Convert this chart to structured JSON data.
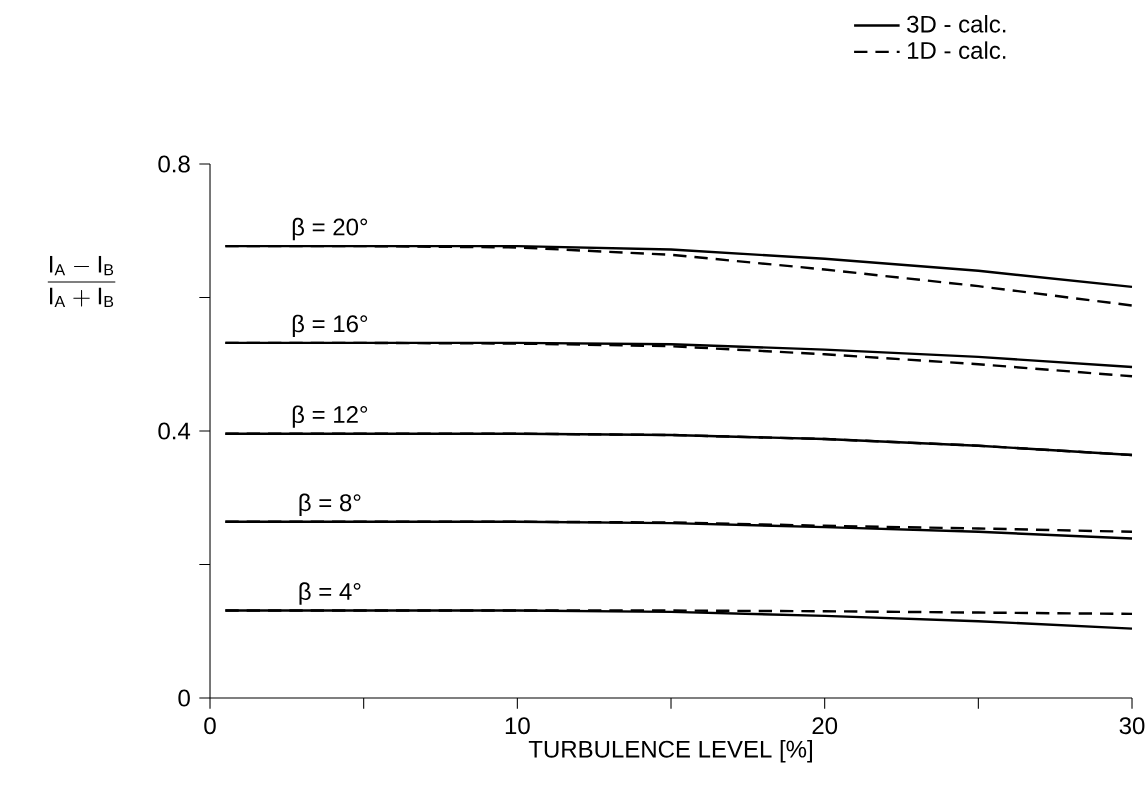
{
  "chart_data": {
    "type": "line",
    "xlabel": "TURBULENCE LEVEL [%]",
    "ylabel": "\\frac{\\mathrm{I_A - I_B}}{\\mathrm{I_A + I_B}}",
    "x": [
      0.5,
      5,
      10,
      15,
      20,
      25,
      30
    ],
    "xlim": [
      0,
      30
    ],
    "ylim": [
      0,
      0.8
    ],
    "xticks": [
      0,
      {
        "value": 5,
        "label": null
      },
      10,
      {
        "value": 15,
        "label": null
      },
      20,
      {
        "value": 25,
        "label": null
      },
      30
    ],
    "yticks": [
      0,
      {
        "value": 0.2,
        "label": null
      },
      0.4,
      {
        "value": 0.6,
        "label": null
      },
      0.8
    ],
    "marker": "none",
    "legend": "top right",
    "series": [
      {
        "name": "3D - calc.",
        "color": "#000000",
        "line_style": "solid",
        "values": [
          0.677,
          0.677,
          0.677,
          0.672,
          0.658,
          0.64,
          0.616
        ]
      },
      {
        "name": "1D - calc.",
        "color": "#000000",
        "line_style": "dashed",
        "values": [
          0.677,
          0.677,
          0.675,
          0.664,
          0.642,
          0.617,
          0.588
        ]
      },
      {
        "color": "#000000",
        "line_style": "solid",
        "values": [
          0.532,
          0.532,
          0.532,
          0.53,
          0.522,
          0.511,
          0.496
        ]
      },
      {
        "color": "#000000",
        "line_style": "dashed",
        "values": [
          0.532,
          0.532,
          0.531,
          0.527,
          0.515,
          0.5,
          0.482
        ]
      },
      {
        "color": "#000000",
        "line_style": "solid",
        "values": [
          0.396,
          0.396,
          0.396,
          0.394,
          0.388,
          0.378,
          0.364
        ]
      },
      {
        "color": "#000000",
        "line_style": "dashed",
        "values": [
          0.396,
          0.396,
          0.396,
          0.394,
          0.388,
          0.378,
          0.364
        ]
      },
      {
        "color": "#000000",
        "line_style": "solid",
        "values": [
          0.264,
          0.264,
          0.264,
          0.262,
          0.256,
          0.249,
          0.239
        ]
      },
      {
        "color": "#000000",
        "line_style": "dashed",
        "values": [
          0.264,
          0.264,
          0.264,
          0.263,
          0.258,
          0.254,
          0.249
        ]
      },
      {
        "color": "#000000",
        "line_style": "solid",
        "values": [
          0.131,
          0.131,
          0.131,
          0.129,
          0.123,
          0.115,
          0.104
        ]
      },
      {
        "color": "#000000",
        "line_style": "dashed",
        "values": [
          0.131,
          0.131,
          0.131,
          0.131,
          0.13,
          0.128,
          0.126
        ]
      }
    ],
    "annotations": [
      {
        "text": "β = 20°",
        "y": 0.677
      },
      {
        "text": "β = 16°",
        "y": 0.532
      },
      {
        "text": "β = 12°",
        "y": 0.396
      },
      {
        "text": "β = 8°",
        "y": 0.264
      },
      {
        "text": "β = 4°",
        "y": 0.131
      }
    ]
  }
}
